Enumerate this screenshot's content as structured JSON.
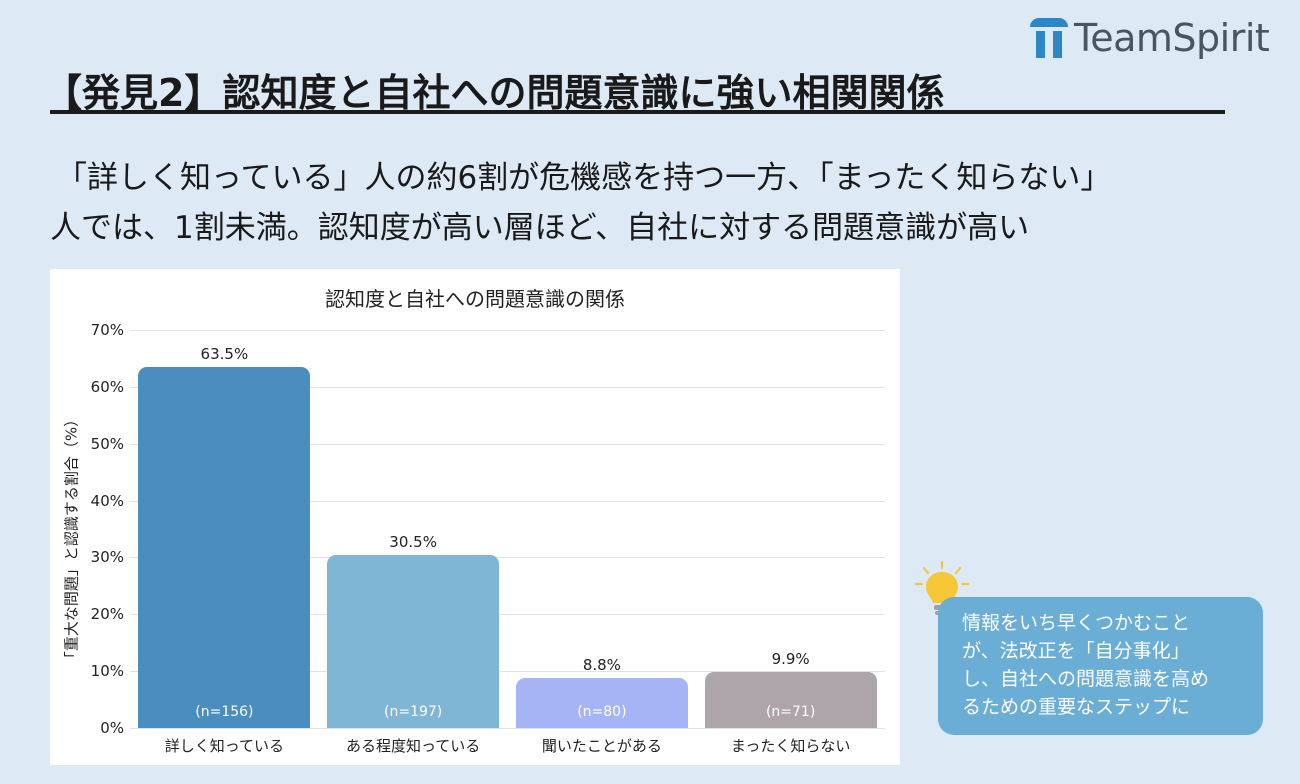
{
  "logo": {
    "text": "TeamSpirit"
  },
  "title": "【発見2】認知度と自社への問題意識に強い相関関係",
  "subtitle": {
    "line1": "「詳しく知っている」人の約6割が危機感を持つ一方、「まったく知らない」",
    "line2": "人では、1割未満。認知度が高い層ほど、自社に対する問題意識が高い"
  },
  "callout": {
    "text": "情報をいち早くつかむこと\nが、法改正を「自分事化」\nし、自社への問題意識を高め\nるための重要なステップに"
  },
  "chart_data": {
    "type": "bar",
    "title": "認知度と自社への問題意識の関係",
    "ylabel": "「重大な問題」と認識する割合（%）",
    "xlabel": "",
    "ylim": [
      0,
      70
    ],
    "yticks": [
      "0%",
      "10%",
      "20%",
      "30%",
      "40%",
      "50%",
      "60%",
      "70%"
    ],
    "grid": true,
    "categories": [
      "詳しく知っている",
      "ある程度知っている",
      "聞いたことがある",
      "まったく知らない"
    ],
    "values": [
      63.5,
      30.5,
      8.8,
      9.9
    ],
    "value_labels": [
      "63.5%",
      "30.5%",
      "8.8%",
      "9.9%"
    ],
    "sample_labels": [
      "(n=156)",
      "(n=197)",
      "(n=80)",
      "(n=71)"
    ],
    "colors": [
      "#4a8dbf",
      "#7fb6d5",
      "#a4b4f5",
      "#ada5a9"
    ]
  }
}
